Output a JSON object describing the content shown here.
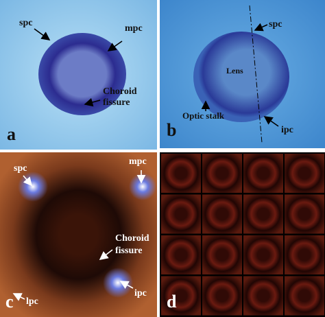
{
  "panels": [
    {
      "label": "a",
      "annotations": [
        "spc",
        "mpc",
        [
          "Choroid",
          "fissure"
        ]
      ]
    },
    {
      "label": "b",
      "annotations": [
        "spc",
        "Lens",
        "Optic stalk",
        "ipc"
      ]
    },
    {
      "label": "c",
      "annotations": [
        "spc",
        "mpc",
        [
          "Choroid",
          "fissure"
        ],
        "lpc",
        "ipc"
      ]
    },
    {
      "label": "d",
      "annotations": []
    }
  ]
}
